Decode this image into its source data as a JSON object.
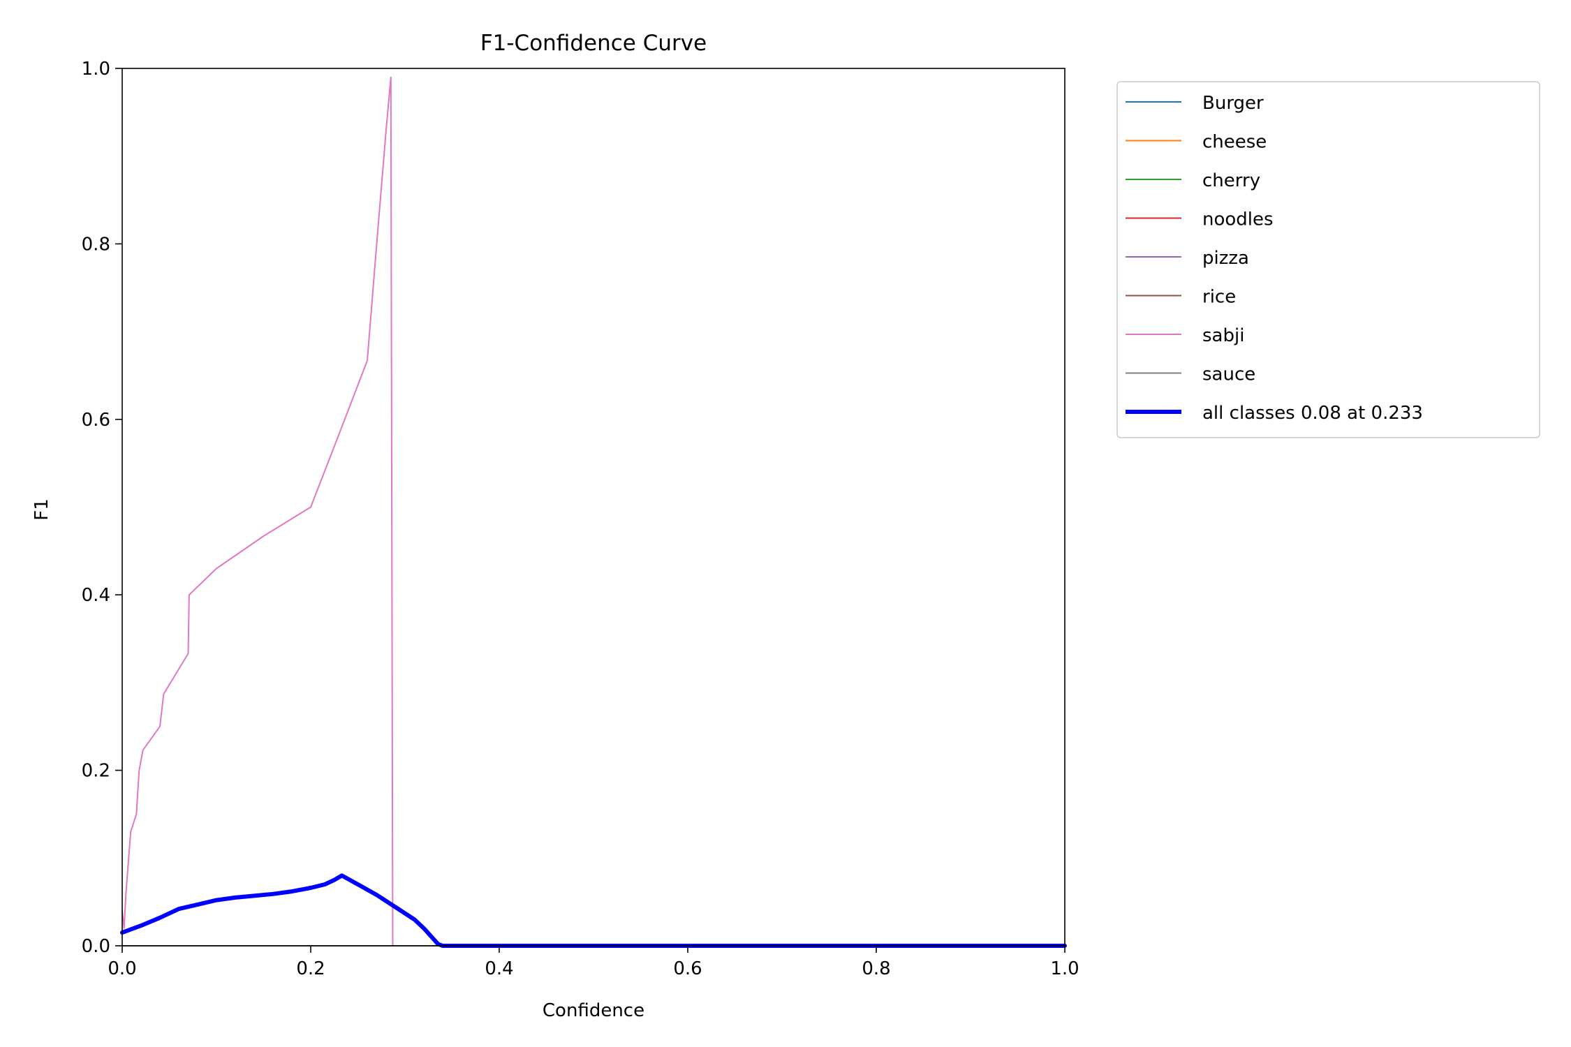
{
  "chart_data": {
    "type": "line",
    "title": "F1-Confidence Curve",
    "xlabel": "Confidence",
    "ylabel": "F1",
    "xlim": [
      0.0,
      1.0
    ],
    "ylim": [
      0.0,
      1.0
    ],
    "xticks": [
      "0.0",
      "0.2",
      "0.4",
      "0.6",
      "0.8",
      "1.0"
    ],
    "yticks": [
      "0.0",
      "0.2",
      "0.4",
      "0.6",
      "0.8",
      "1.0"
    ],
    "grid": false,
    "legend_position": "outside-top-right",
    "series": [
      {
        "name": "Burger",
        "color": "#1f77b4",
        "x": [
          0.0,
          1.0
        ],
        "y": [
          0.0,
          0.0
        ]
      },
      {
        "name": "cheese",
        "color": "#ff7f0e",
        "x": [
          0.0,
          1.0
        ],
        "y": [
          0.0,
          0.0
        ]
      },
      {
        "name": "cherry",
        "color": "#2ca02c",
        "x": [
          0.0,
          1.0
        ],
        "y": [
          0.0,
          0.0
        ]
      },
      {
        "name": "noodles",
        "color": "#d62728",
        "x": [
          0.0,
          1.0
        ],
        "y": [
          0.0,
          0.0
        ]
      },
      {
        "name": "pizza",
        "color": "#9467bd",
        "x": [
          0.0,
          1.0
        ],
        "y": [
          0.0,
          0.0
        ]
      },
      {
        "name": "rice",
        "color": "#8c564b",
        "x": [
          0.0,
          1.0
        ],
        "y": [
          0.0,
          0.0
        ]
      },
      {
        "name": "sabji",
        "color": "#e377c2",
        "x": [
          0.0,
          0.002,
          0.004,
          0.009,
          0.015,
          0.018,
          0.022,
          0.04,
          0.044,
          0.07,
          0.071,
          0.1,
          0.15,
          0.2,
          0.23,
          0.26,
          0.27,
          0.28,
          0.285,
          0.286,
          0.287,
          1.0
        ],
        "y": [
          0.04,
          0.02,
          0.06,
          0.13,
          0.15,
          0.2,
          0.223,
          0.25,
          0.287,
          0.333,
          0.4,
          0.43,
          0.467,
          0.5,
          0.583,
          0.667,
          0.8,
          0.93,
          0.99,
          0.5,
          0.0,
          0.0
        ]
      },
      {
        "name": "sauce",
        "color": "#7f7f7f",
        "x": [
          0.0,
          1.0
        ],
        "y": [
          0.0,
          0.0
        ]
      },
      {
        "name": "all classes 0.08 at 0.233",
        "color": "#0000ff",
        "bold": true,
        "x": [
          0.0,
          0.02,
          0.04,
          0.06,
          0.08,
          0.1,
          0.12,
          0.14,
          0.16,
          0.18,
          0.2,
          0.215,
          0.225,
          0.233,
          0.25,
          0.27,
          0.29,
          0.31,
          0.32,
          0.33,
          0.335,
          0.34,
          1.0
        ],
        "y": [
          0.015,
          0.023,
          0.032,
          0.042,
          0.047,
          0.052,
          0.055,
          0.057,
          0.059,
          0.062,
          0.066,
          0.07,
          0.075,
          0.08,
          0.07,
          0.058,
          0.044,
          0.03,
          0.02,
          0.008,
          0.002,
          0.0,
          0.0
        ]
      }
    ]
  }
}
